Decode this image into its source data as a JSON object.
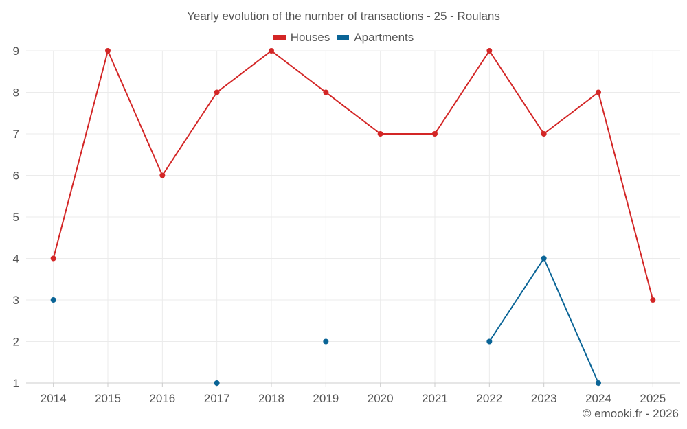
{
  "chart_data": {
    "type": "line",
    "title": "Yearly evolution of the number of transactions - 25 - Roulans",
    "categories": [
      "2014",
      "2015",
      "2016",
      "2017",
      "2018",
      "2019",
      "2020",
      "2021",
      "2022",
      "2023",
      "2024",
      "2025"
    ],
    "series": [
      {
        "name": "Houses",
        "color": "#d32626",
        "values": [
          4,
          9,
          6,
          8,
          9,
          8,
          7,
          7,
          9,
          7,
          8,
          3
        ]
      },
      {
        "name": "Apartments",
        "color": "#0a6496",
        "values": [
          3,
          null,
          null,
          1,
          null,
          2,
          null,
          null,
          2,
          4,
          1,
          null
        ]
      }
    ],
    "yticks": [
      1,
      2,
      3,
      4,
      5,
      6,
      7,
      8,
      9
    ],
    "ylim": [
      1,
      9
    ],
    "grid": true,
    "legend": "top-center",
    "xlabel": "",
    "ylabel": ""
  },
  "footer": {
    "copyright": "© emooki.fr - 2026"
  }
}
